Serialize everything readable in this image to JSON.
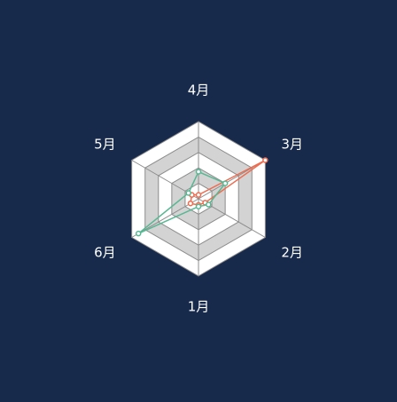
{
  "background": "#172a4c",
  "chart_data": {
    "type": "radar",
    "categories": [
      "1月",
      "2月",
      "3月",
      "4月",
      "5月",
      "6月"
    ],
    "rmax": 100,
    "rings": 5,
    "ring_colors": [
      "#ffffff",
      "#d3d3d3"
    ],
    "spoke_color": "#8c8c8c",
    "series": [
      {
        "color": "#ef6c4f",
        "values": [
          8,
          10,
          100,
          5,
          10,
          12
        ]
      },
      {
        "color": "#58b893",
        "values": [
          10,
          15,
          40,
          35,
          15,
          90
        ]
      }
    ]
  }
}
